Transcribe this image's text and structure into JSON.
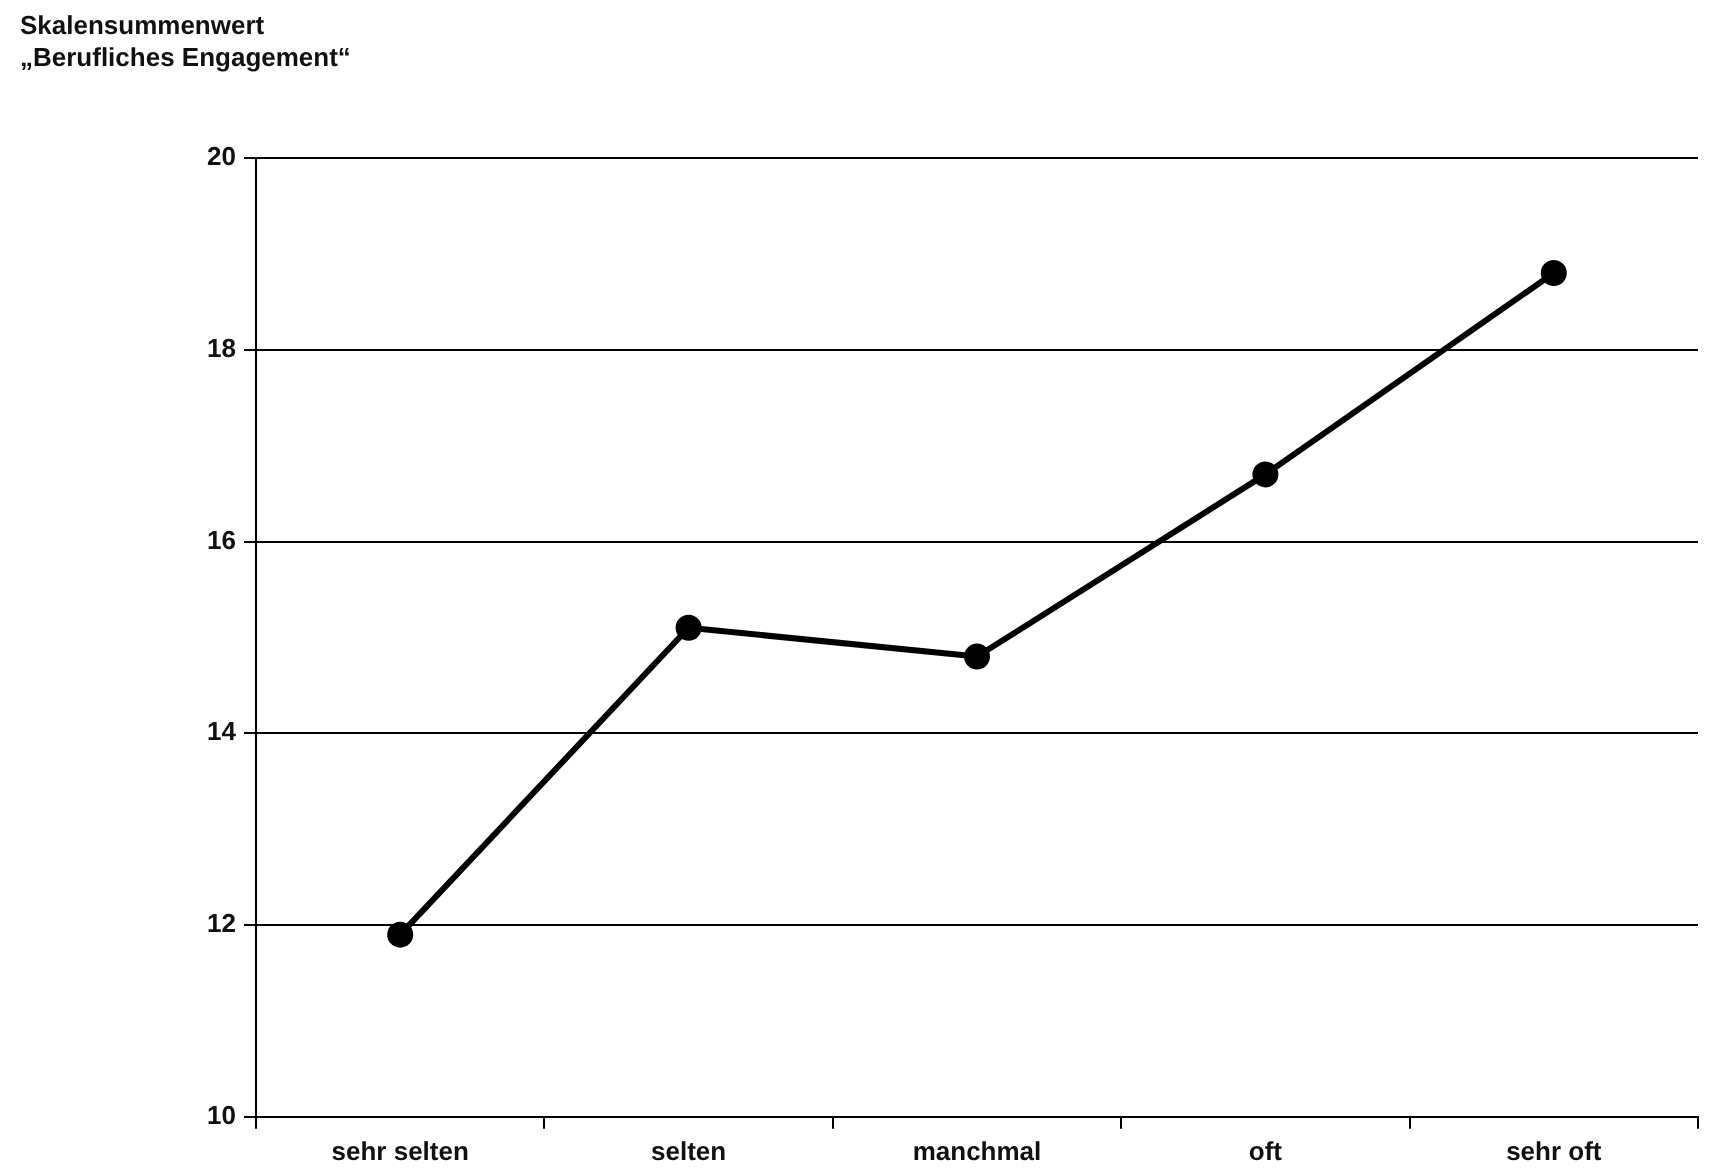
{
  "chart_data": {
    "type": "line",
    "ylabel": "Skalensummenwert\n„Berufliches Engagement“",
    "categories": [
      "sehr selten",
      "selten",
      "manchmal",
      "oft",
      "sehr oft"
    ],
    "series": [
      {
        "color": "#000000",
        "values": [
          11.9,
          15.1,
          14.8,
          16.7,
          18.8
        ]
      }
    ],
    "ylim": [
      10,
      20
    ],
    "yticks": [
      10,
      12,
      14,
      16,
      18,
      20
    ],
    "grid": "y",
    "legend": false,
    "marker": "circle",
    "line_style": "solid"
  }
}
